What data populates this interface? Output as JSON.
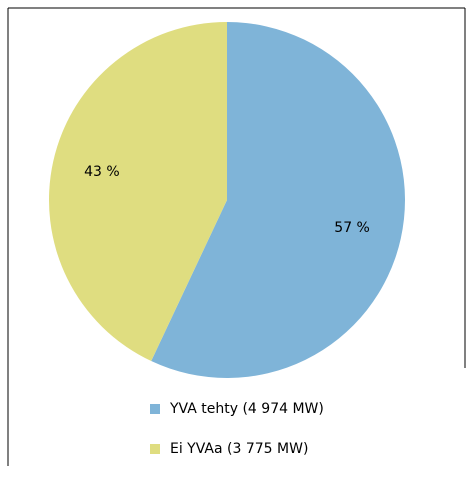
{
  "chart_data": {
    "type": "pie",
    "categories": [
      "YVA tehty (4 974 MW)",
      "Ei YVAa (3 775 MW)"
    ],
    "values": [
      57,
      43
    ],
    "value_labels": [
      "57 %",
      "43 %"
    ],
    "colors": [
      "#7fb4d8",
      "#dfdd80"
    ]
  }
}
